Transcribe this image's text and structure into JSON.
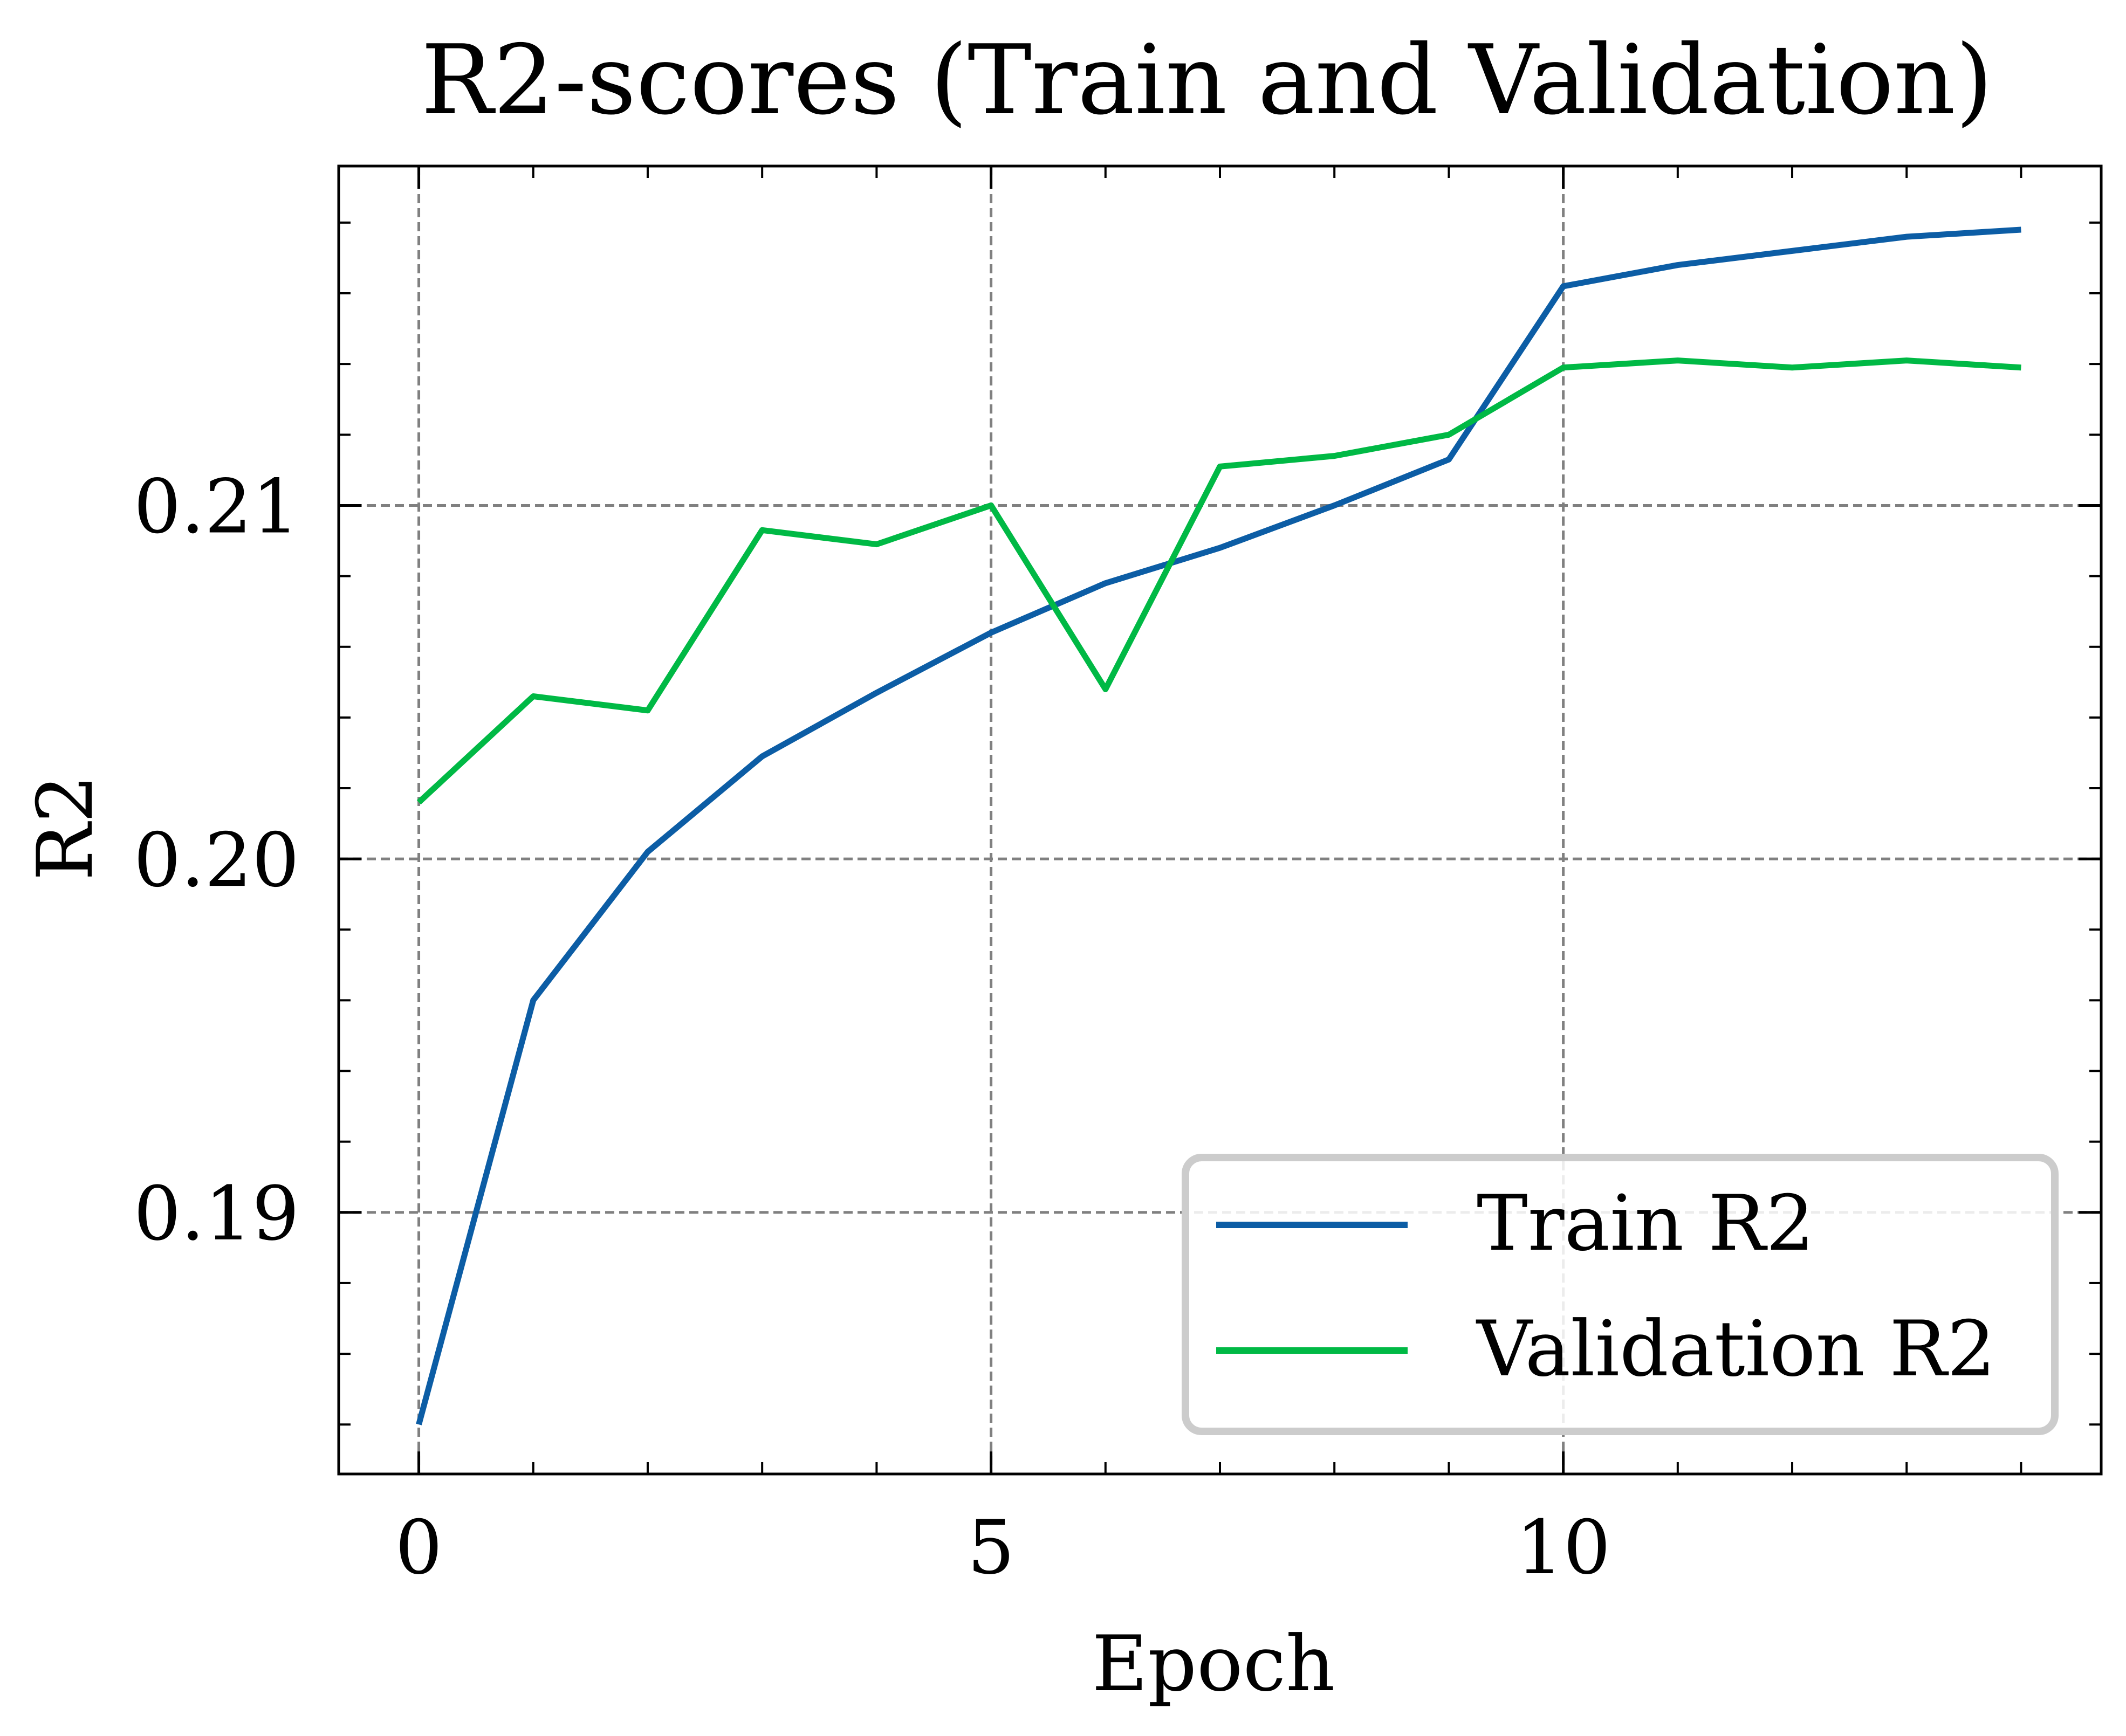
{
  "chart_data": {
    "type": "line",
    "title": "R2-scores (Train and Validation)",
    "xlabel": "Epoch",
    "ylabel": "R2",
    "xlim": [
      -0.7,
      14.7
    ],
    "ylim": [
      0.1826,
      0.2196
    ],
    "xticks": [
      0,
      5,
      10
    ],
    "xtick_labels": [
      "0",
      "5",
      "10"
    ],
    "yticks": [
      0.19,
      0.2,
      0.21
    ],
    "ytick_labels": [
      "0.19",
      "0.20",
      "0.21"
    ],
    "grid": true,
    "legend_position": "lower right",
    "x": [
      0,
      1,
      2,
      3,
      4,
      5,
      6,
      7,
      8,
      9,
      10,
      11,
      12,
      13,
      14
    ],
    "series": [
      {
        "name": "Train R2",
        "color": "#0C5DA5",
        "values": [
          0.184,
          0.196,
          0.2002,
          0.2029,
          0.2047,
          0.2064,
          0.2078,
          0.2088,
          0.21,
          0.2113,
          0.2162,
          0.2168,
          0.2172,
          0.2176,
          0.2178
        ]
      },
      {
        "name": "Validation R2",
        "color": "#00B945",
        "values": [
          0.2016,
          0.2046,
          0.2042,
          0.2093,
          0.2089,
          0.21,
          0.2048,
          0.2111,
          0.2114,
          0.212,
          0.2139,
          0.2141,
          0.2139,
          0.2141,
          0.2139
        ]
      }
    ]
  }
}
